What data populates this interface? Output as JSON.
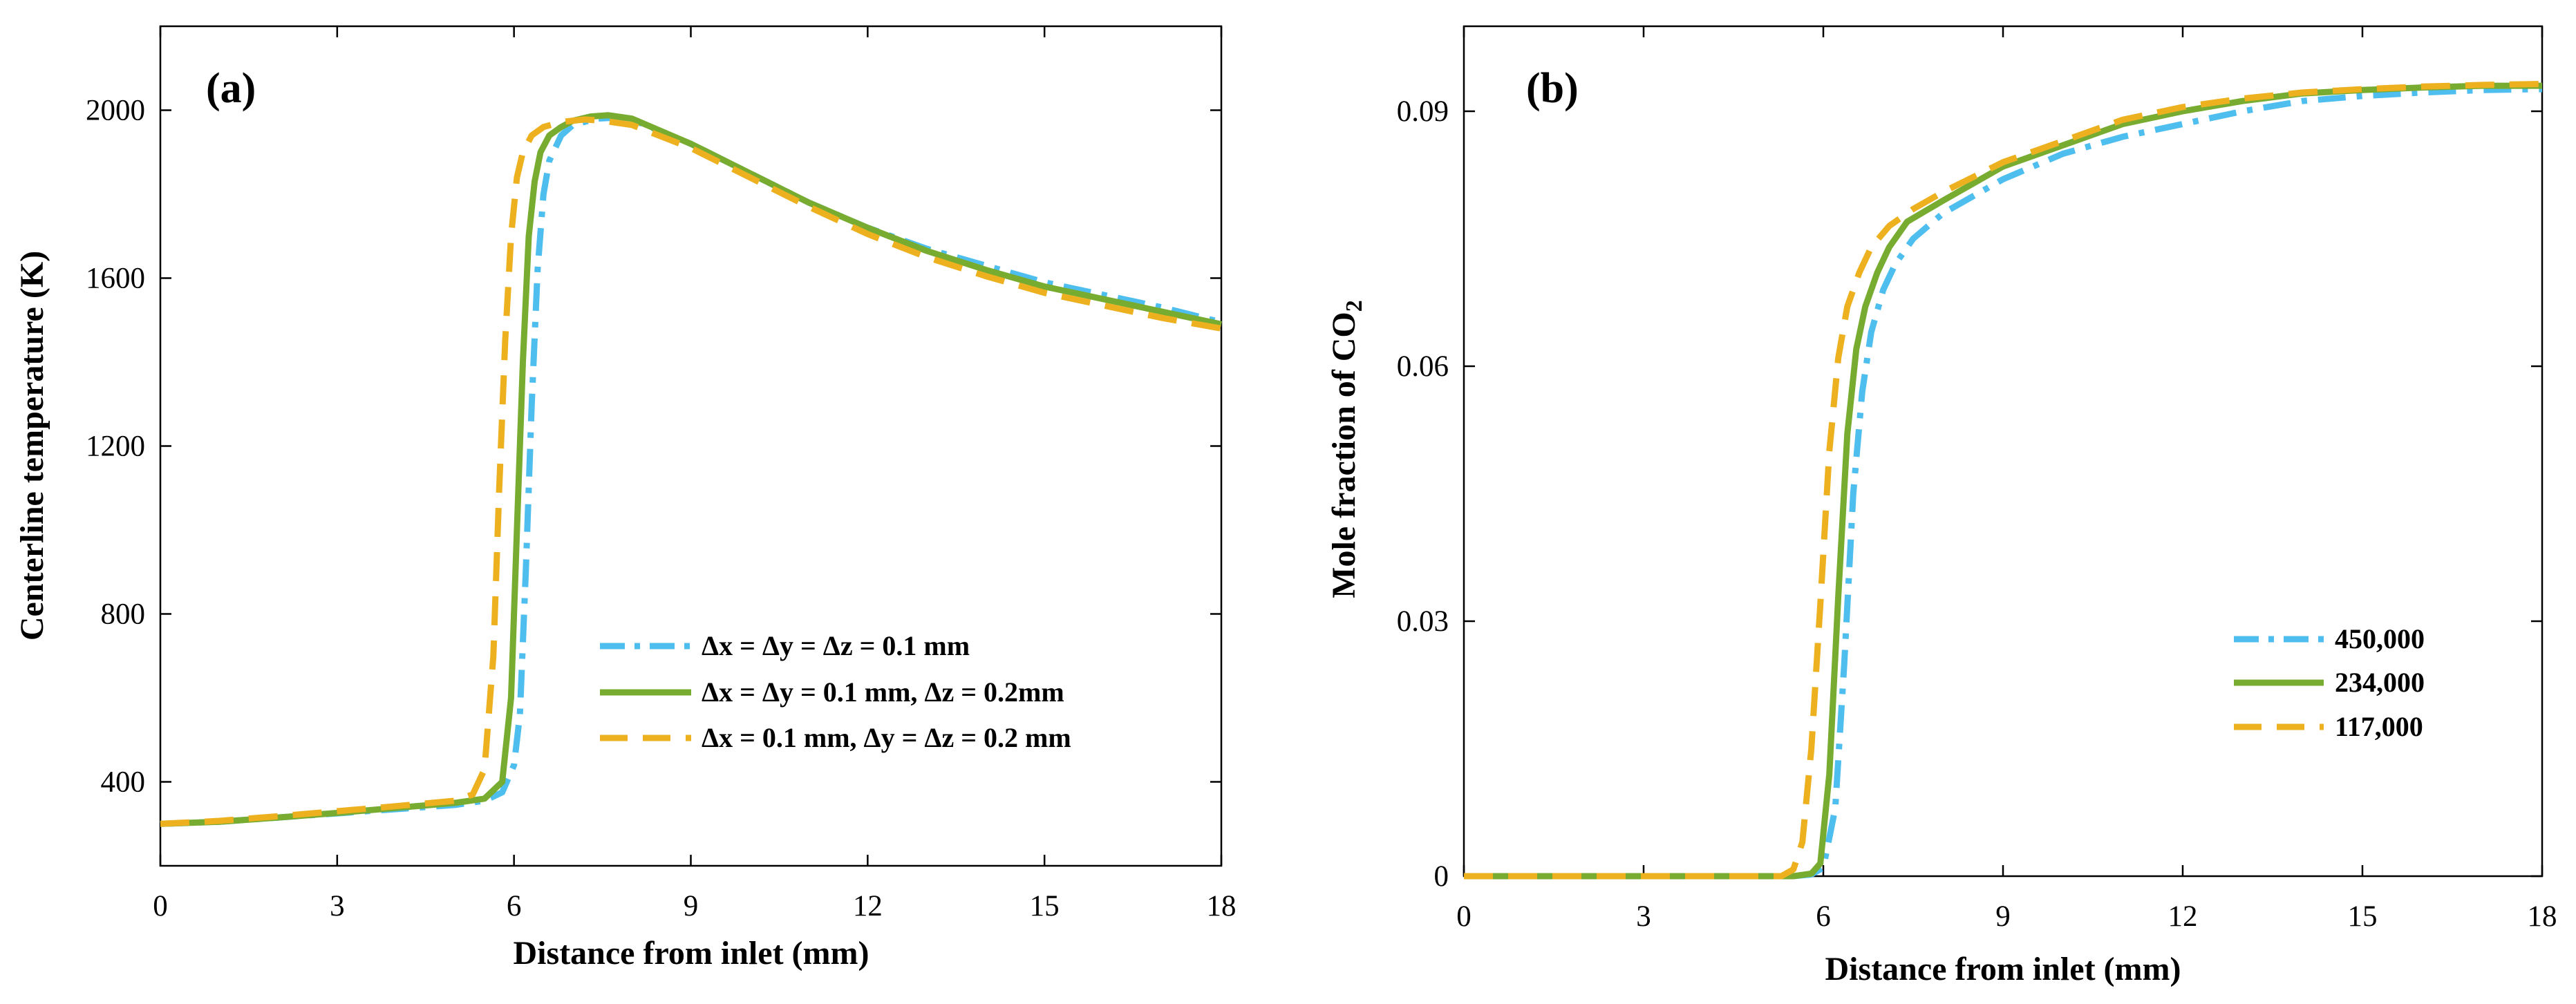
{
  "colors": {
    "fine": "#4dbeee",
    "medium": "#77ac30",
    "coarse": "#edb120"
  },
  "chart_data": [
    {
      "type": "line",
      "panel_label": "(a)",
      "xlabel": "Distance from inlet (mm)",
      "ylabel": "Centerline temperature (K)",
      "xlim": [
        0,
        18
      ],
      "ylim": [
        200,
        2200
      ],
      "xticks": [
        0,
        3,
        6,
        9,
        12,
        15,
        18
      ],
      "yticks": [
        400,
        800,
        1200,
        1600,
        2000
      ],
      "legend_position": "middle-right",
      "series": [
        {
          "name": "Δx = Δy = Δz = 0.1 mm",
          "style": "dashdot",
          "color_key": "fine",
          "x": [
            0,
            1,
            2,
            3,
            4,
            5,
            5.5,
            5.8,
            6.0,
            6.1,
            6.2,
            6.3,
            6.4,
            6.5,
            6.6,
            6.8,
            7.0,
            7.4,
            7.7,
            8,
            9,
            10,
            11,
            12,
            13,
            14,
            15,
            16,
            17,
            18
          ],
          "y": [
            300,
            305,
            315,
            325,
            335,
            345,
            355,
            375,
            440,
            560,
            900,
            1300,
            1620,
            1800,
            1880,
            1940,
            1965,
            1980,
            1982,
            1978,
            1920,
            1850,
            1780,
            1720,
            1670,
            1630,
            1590,
            1560,
            1530,
            1495
          ]
        },
        {
          "name": "Δx = Δy = 0.1 mm, Δz = 0.2mm",
          "style": "solid",
          "color_key": "medium",
          "x": [
            0,
            1,
            2,
            3,
            4,
            5,
            5.5,
            5.8,
            5.95,
            6.05,
            6.15,
            6.25,
            6.35,
            6.45,
            6.6,
            6.8,
            7.0,
            7.3,
            7.6,
            8,
            9,
            10,
            11,
            12,
            13,
            14,
            15,
            16,
            17,
            18
          ],
          "y": [
            300,
            305,
            315,
            326,
            338,
            350,
            360,
            400,
            600,
            1000,
            1400,
            1700,
            1830,
            1900,
            1940,
            1960,
            1975,
            1985,
            1988,
            1980,
            1920,
            1850,
            1780,
            1720,
            1665,
            1620,
            1580,
            1550,
            1520,
            1490
          ]
        },
        {
          "name": "Δx = 0.1 mm, Δy = Δz = 0.2 mm",
          "style": "dashed",
          "color_key": "coarse",
          "x": [
            0,
            1,
            2,
            3,
            4,
            5,
            5.3,
            5.5,
            5.65,
            5.75,
            5.85,
            5.95,
            6.05,
            6.15,
            6.3,
            6.5,
            6.8,
            7.2,
            7.5,
            8,
            9,
            10,
            11,
            12,
            13,
            14,
            15,
            16,
            17,
            18
          ],
          "y": [
            300,
            307,
            318,
            330,
            342,
            355,
            370,
            430,
            700,
            1100,
            1450,
            1700,
            1840,
            1900,
            1940,
            1960,
            1972,
            1978,
            1975,
            1965,
            1910,
            1840,
            1770,
            1705,
            1650,
            1605,
            1565,
            1535,
            1505,
            1480
          ]
        }
      ]
    },
    {
      "type": "line",
      "panel_label": "(b)",
      "xlabel": "Distance from inlet (mm)",
      "ylabel": "Mole fraction of CO",
      "ylabel_subscript": "2",
      "xlim": [
        0,
        18
      ],
      "ylim": [
        0,
        0.1
      ],
      "xticks": [
        0,
        3,
        6,
        9,
        12,
        15,
        18
      ],
      "yticks": [
        0,
        0.03,
        0.06,
        0.09
      ],
      "ytick_labels": [
        "0",
        "0.03",
        "0.06",
        "0.09"
      ],
      "legend_position": "bottom-right",
      "series": [
        {
          "name": "450,000",
          "style": "dashdot",
          "color_key": "fine",
          "x": [
            0,
            1,
            2,
            3,
            4,
            5,
            5.5,
            5.8,
            6.0,
            6.2,
            6.35,
            6.5,
            6.65,
            6.8,
            7.0,
            7.2,
            7.5,
            8,
            9,
            10,
            11,
            12,
            13,
            14,
            15,
            16,
            17,
            18
          ],
          "y": [
            0,
            0,
            0,
            0,
            0,
            0,
            0,
            0.0002,
            0.001,
            0.008,
            0.025,
            0.045,
            0.057,
            0.064,
            0.069,
            0.072,
            0.075,
            0.078,
            0.082,
            0.085,
            0.087,
            0.0885,
            0.09,
            0.0912,
            0.0918,
            0.0922,
            0.0925,
            0.0926
          ]
        },
        {
          "name": "234,000",
          "style": "solid",
          "color_key": "medium",
          "x": [
            0,
            1,
            2,
            3,
            4,
            5,
            5.5,
            5.8,
            5.95,
            6.1,
            6.25,
            6.4,
            6.55,
            6.7,
            6.9,
            7.1,
            7.4,
            8,
            9,
            10,
            11,
            12,
            13,
            14,
            15,
            16,
            17,
            18
          ],
          "y": [
            0,
            0,
            0,
            0,
            0,
            0,
            0,
            0.0003,
            0.0015,
            0.012,
            0.033,
            0.052,
            0.062,
            0.067,
            0.071,
            0.074,
            0.077,
            0.0795,
            0.0835,
            0.086,
            0.0885,
            0.09,
            0.0912,
            0.0921,
            0.0925,
            0.0928,
            0.093,
            0.093
          ]
        },
        {
          "name": "117,000",
          "style": "dashed",
          "color_key": "coarse",
          "x": [
            0,
            1,
            2,
            3,
            4,
            5,
            5.3,
            5.5,
            5.65,
            5.8,
            5.95,
            6.1,
            6.25,
            6.4,
            6.6,
            6.8,
            7.1,
            7.5,
            8,
            9,
            10,
            11,
            12,
            13,
            14,
            15,
            16,
            17,
            18
          ],
          "y": [
            0,
            0,
            0,
            0,
            0,
            0,
            0,
            0.0008,
            0.004,
            0.015,
            0.032,
            0.05,
            0.061,
            0.067,
            0.071,
            0.074,
            0.0765,
            0.0785,
            0.0805,
            0.084,
            0.0865,
            0.089,
            0.0905,
            0.0915,
            0.0922,
            0.0926,
            0.0929,
            0.0931,
            0.0932
          ]
        }
      ]
    }
  ]
}
